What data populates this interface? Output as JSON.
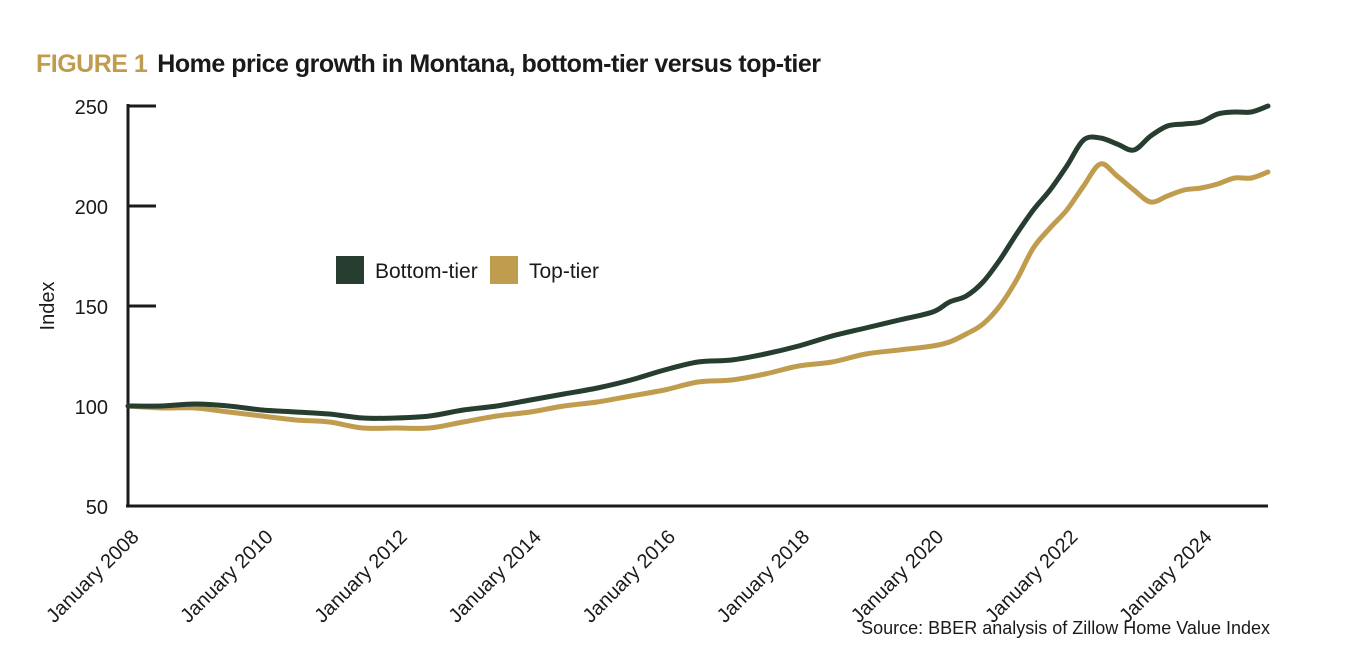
{
  "figure": {
    "label": "FIGURE 1",
    "title": "Home price growth in Montana, bottom-tier versus top-tier",
    "source": "Source: BBER analysis of Zillow Home Value Index"
  },
  "chart_data": {
    "type": "line",
    "title": "Home price growth in Montana, bottom-tier versus top-tier",
    "xlabel": "",
    "ylabel": "Index",
    "ylim": [
      50,
      250
    ],
    "yticks": [
      50,
      100,
      150,
      200,
      250
    ],
    "xlim": [
      2008.0,
      2025.0
    ],
    "xticks": [
      {
        "label": "January 2008",
        "value": 2008
      },
      {
        "label": "January 2010",
        "value": 2010
      },
      {
        "label": "January 2012",
        "value": 2012
      },
      {
        "label": "January 2014",
        "value": 2014
      },
      {
        "label": "January 2016",
        "value": 2016
      },
      {
        "label": "January 2018",
        "value": 2018
      },
      {
        "label": "January 2020",
        "value": 2020
      },
      {
        "label": "January 2022",
        "value": 2022
      },
      {
        "label": "January 2024",
        "value": 2024
      }
    ],
    "legend": "center-left",
    "x": [
      2008.0,
      2008.5,
      2009.0,
      2009.5,
      2010.0,
      2010.5,
      2011.0,
      2011.5,
      2012.0,
      2012.5,
      2013.0,
      2013.5,
      2014.0,
      2014.5,
      2015.0,
      2015.5,
      2016.0,
      2016.5,
      2017.0,
      2017.5,
      2018.0,
      2018.5,
      2019.0,
      2019.5,
      2020.0,
      2020.25,
      2020.5,
      2020.75,
      2021.0,
      2021.25,
      2021.5,
      2021.75,
      2022.0,
      2022.25,
      2022.5,
      2022.75,
      2023.0,
      2023.25,
      2023.5,
      2023.75,
      2024.0,
      2024.25,
      2024.5,
      2024.75,
      2025.0
    ],
    "series": [
      {
        "name": "Bottom-tier",
        "color": "#263d2f",
        "values": [
          100,
          100,
          101,
          100,
          98,
          97,
          96,
          94,
          94,
          95,
          98,
          100,
          103,
          106,
          109,
          113,
          118,
          122,
          123,
          126,
          130,
          135,
          139,
          143,
          147,
          152,
          155,
          162,
          173,
          186,
          198,
          208,
          220,
          233,
          234,
          231,
          228,
          235,
          240,
          241,
          242,
          246,
          247,
          247,
          250
        ]
      },
      {
        "name": "Top-tier",
        "color": "#c09d4e",
        "values": [
          100,
          99,
          99,
          97,
          95,
          93,
          92,
          89,
          89,
          89,
          92,
          95,
          97,
          100,
          102,
          105,
          108,
          112,
          113,
          116,
          120,
          122,
          126,
          128,
          130,
          132,
          136,
          141,
          150,
          163,
          179,
          189,
          198,
          210,
          221,
          215,
          208,
          202,
          205,
          208,
          209,
          211,
          214,
          214,
          217
        ]
      }
    ]
  }
}
